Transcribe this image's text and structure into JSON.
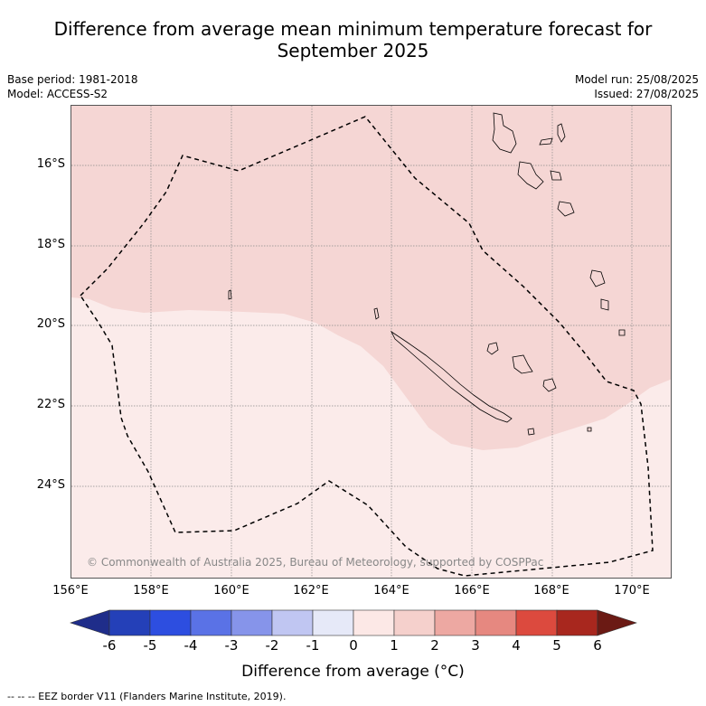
{
  "header": {
    "title_line1": "Difference from average mean minimum temperature forecast for",
    "title_line2": "September 2025",
    "base_period": "Base period: 1981-2018",
    "model": "Model: ACCESS-S2",
    "model_run": "Model run: 25/08/2025",
    "issued": "Issued: 27/08/2025"
  },
  "map": {
    "lat_labels": [
      "16°S",
      "18°S",
      "20°S",
      "22°S",
      "24°S"
    ],
    "lon_labels": [
      "156°E",
      "158°E",
      "160°E",
      "162°E",
      "164°E",
      "166°E",
      "168°E",
      "170°E"
    ],
    "copyright": "© Commonwealth of Australia 2025, Bureau of Meteorology, supported by COSPPac",
    "regions": [
      {
        "category": "+1 to +2",
        "color": "#f5d6d4"
      },
      {
        "category": "0 to +1",
        "color": "#fbebea"
      }
    ],
    "eez_line_style": "dashed black"
  },
  "colorbar": {
    "title": "Difference from average (°C)",
    "tick_labels": [
      "-6",
      "-5",
      "-4",
      "-3",
      "-2",
      "-1",
      "0",
      "1",
      "2",
      "3",
      "4",
      "5",
      "6"
    ],
    "colors": [
      "#1f2d8a",
      "#2440b8",
      "#2d4ee0",
      "#5a72e6",
      "#8694ea",
      "#c0c6f2",
      "#e6e9f8",
      "#fce8e6",
      "#f5d0cc",
      "#eda8a2",
      "#e68880",
      "#dc4a3e",
      "#a8271e",
      "#6b1a14"
    ]
  },
  "footnote": "-- -- -- EEZ border V11 (Flanders Marine Institute, 2019)."
}
